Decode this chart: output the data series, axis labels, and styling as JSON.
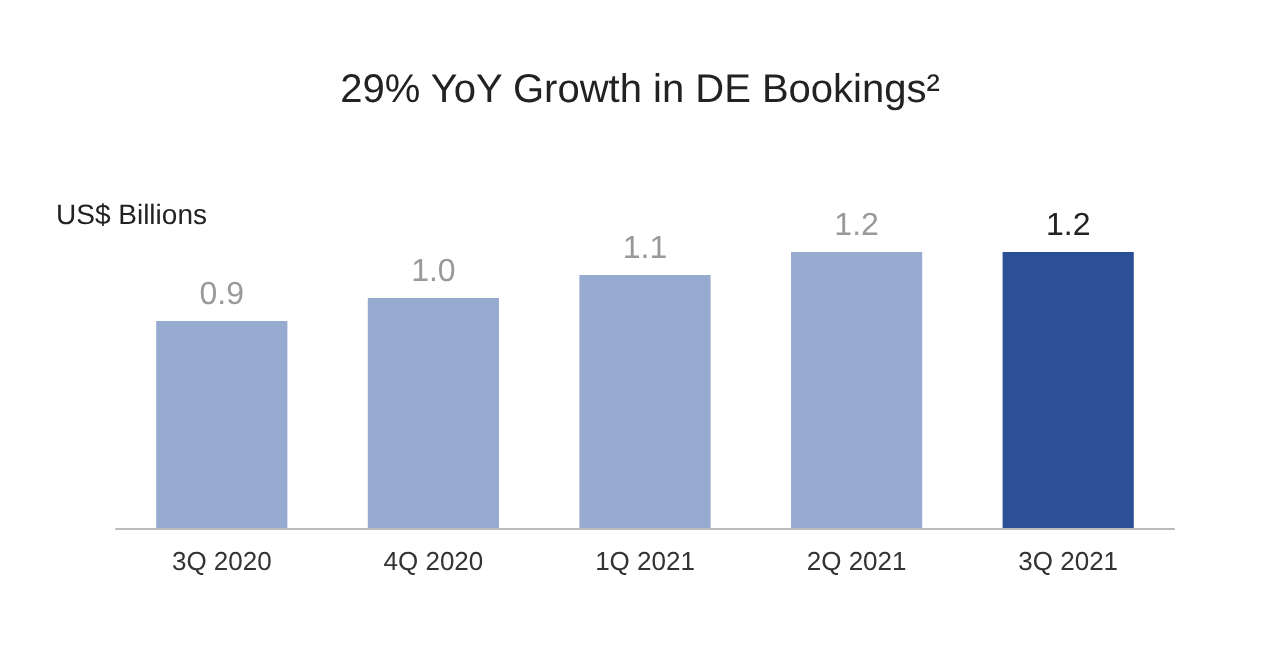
{
  "chart_data": {
    "type": "bar",
    "title": "29% YoY Growth in DE Bookings²",
    "ylabel": "US$ Billions",
    "categories": [
      "3Q 2020",
      "4Q 2020",
      "1Q 2021",
      "2Q 2021",
      "3Q 2021"
    ],
    "values": [
      0.9,
      1.0,
      1.1,
      1.2,
      1.2
    ],
    "value_labels": [
      "0.9",
      "1.0",
      "1.1",
      "1.2",
      "1.2"
    ],
    "colors": [
      "#97aad0",
      "#97aad0",
      "#97aad0",
      "#97aad0",
      "#2c4f98"
    ]
  }
}
